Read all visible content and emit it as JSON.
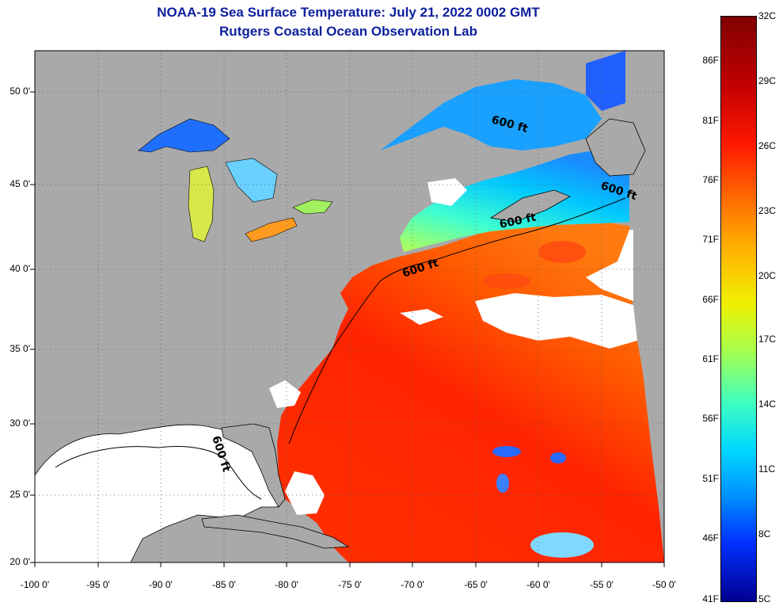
{
  "title": {
    "line1": "NOAA-19 Sea Surface Temperature:  July 21, 2022 0002 GMT",
    "line2": "Rutgers Coastal Ocean Observation Lab"
  },
  "axes": {
    "lat_labels": [
      "50 0'",
      "45 0'",
      "40 0'",
      "35 0'",
      "30 0'",
      "25 0'",
      "20 0'"
    ],
    "lon_labels": [
      "-100 0'",
      "-95 0'",
      "-90 0'",
      "-85 0'",
      "-80 0'",
      "-75 0'",
      "-70 0'",
      "-65 0'",
      "-60 0'",
      "-55 0'",
      "-50 0'"
    ],
    "grid": "dotted",
    "lat_range": [
      20,
      52.5
    ],
    "lon_range": [
      -100,
      -50
    ]
  },
  "contour_labels": [
    "600 ft",
    "600 ft",
    "600 ft",
    "600 ft",
    "600 ft"
  ],
  "colorbar": {
    "celsius": [
      "32C",
      "29C",
      "26C",
      "23C",
      "20C",
      "17C",
      "14C",
      "11C",
      "8C",
      "5C"
    ],
    "fahrenheit": [
      "86F",
      "81F",
      "76F",
      "71F",
      "66F",
      "61F",
      "56F",
      "51F",
      "46F",
      "41F"
    ],
    "range_c": [
      5,
      32
    ],
    "colors": [
      "#800000",
      "#ff1a00",
      "#ffb400",
      "#f0f000",
      "#40ffc0",
      "#00d8ff",
      "#0030ff",
      "#000090"
    ]
  },
  "colors": {
    "land": "#a9a9a9",
    "no_data": "#ffffff",
    "title": "#0d1f9e"
  }
}
